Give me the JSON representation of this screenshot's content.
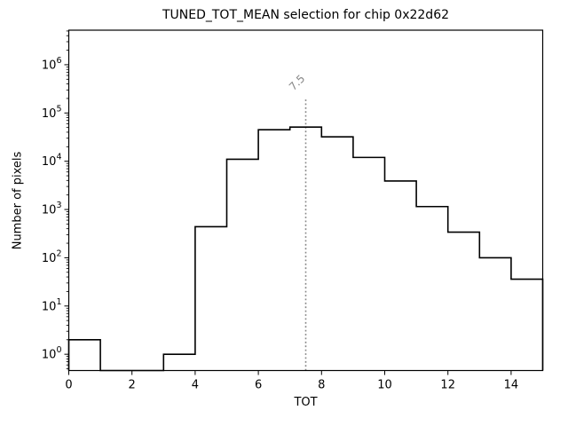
{
  "figure": {
    "background": "#ffffff"
  },
  "chart_data": {
    "type": "bar",
    "subtype": "step-histogram",
    "title": "TUNED_TOT_MEAN selection for chip 0x22d62",
    "xlabel": "TOT",
    "ylabel": "Number of pixels",
    "yscale": "log",
    "grid": false,
    "legend": null,
    "xlim": [
      0,
      15
    ],
    "ylim": [
      0.46,
      5200000
    ],
    "xticks": [
      0,
      2,
      4,
      6,
      8,
      10,
      12,
      14
    ],
    "ytick_exponents": [
      0,
      1,
      2,
      3,
      4,
      5,
      6
    ],
    "bin_edges": [
      0,
      1,
      2,
      3,
      4,
      5,
      6,
      7,
      8,
      9,
      10,
      11,
      12,
      13,
      14,
      15
    ],
    "counts": [
      2,
      0,
      0,
      1,
      440,
      11000,
      45000,
      51000,
      32000,
      12000,
      3900,
      1150,
      340,
      100,
      36
    ],
    "line_color": "#000000",
    "annotations": [
      {
        "type": "vline",
        "x": 7.5,
        "label": "7.5",
        "style": "dotted",
        "color": "#888888",
        "label_color": "#888888",
        "top_value": 200000
      }
    ]
  }
}
